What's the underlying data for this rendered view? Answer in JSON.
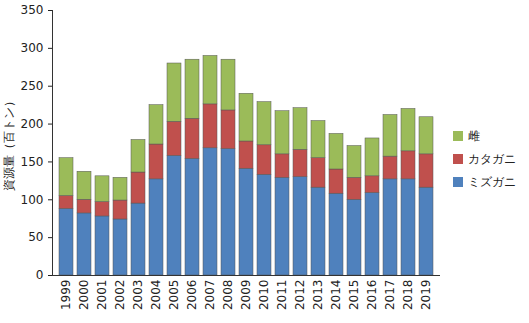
{
  "chart_data": {
    "type": "bar",
    "stacked": true,
    "ylabel": "資源量（百トン）",
    "categories": [
      "1999",
      "2000",
      "2001",
      "2002",
      "2003",
      "2004",
      "2005",
      "2006",
      "2007",
      "2008",
      "2009",
      "2010",
      "2011",
      "2012",
      "2013",
      "2014",
      "2015",
      "2016",
      "2017",
      "2018",
      "2019"
    ],
    "series": [
      {
        "name": "ミズガニ",
        "color": "#4f81bd",
        "values": [
          88,
          82,
          78,
          74,
          95,
          127,
          158,
          154,
          168,
          167,
          141,
          133,
          129,
          130,
          116,
          108,
          100,
          109,
          127,
          127,
          116
        ]
      },
      {
        "name": "カタガニ",
        "color": "#c0504d",
        "values": [
          17,
          18,
          19,
          25,
          41,
          46,
          45,
          53,
          58,
          51,
          36,
          39,
          31,
          36,
          39,
          32,
          29,
          22,
          30,
          37,
          44
        ]
      },
      {
        "name": "雌",
        "color": "#9bbb59",
        "values": [
          50,
          37,
          34,
          30,
          43,
          52,
          77,
          78,
          64,
          67,
          63,
          57,
          57,
          55,
          49,
          47,
          42,
          50,
          55,
          56,
          49
        ]
      }
    ],
    "ylim": [
      0,
      350
    ],
    "yticks": [
      0,
      50,
      100,
      150,
      200,
      250,
      300,
      350
    ],
    "grid": false,
    "legend": "right"
  }
}
